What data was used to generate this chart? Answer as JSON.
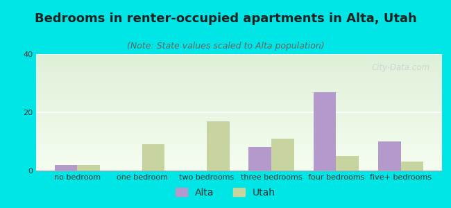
{
  "title": "Bedrooms in renter-occupied apartments in Alta, Utah",
  "subtitle": "(Note: State values scaled to Alta population)",
  "categories": [
    "no bedroom",
    "one bedroom",
    "two bedrooms",
    "three bedrooms",
    "four bedrooms",
    "five+ bedrooms"
  ],
  "alta_values": [
    2,
    0,
    0,
    8,
    27,
    10
  ],
  "utah_values": [
    2,
    9,
    17,
    11,
    5,
    3
  ],
  "alta_color": "#b399cc",
  "utah_color": "#c8d4a0",
  "background_color": "#00e5e5",
  "plot_bg_color": "#eef7e8",
  "ylim": [
    0,
    40
  ],
  "yticks": [
    0,
    20,
    40
  ],
  "bar_width": 0.35,
  "title_fontsize": 13,
  "subtitle_fontsize": 9,
  "tick_fontsize": 8,
  "legend_fontsize": 10,
  "watermark_text": "City-Data.com",
  "watermark_color": "#c0c8d0",
  "watermark_alpha": 0.65
}
